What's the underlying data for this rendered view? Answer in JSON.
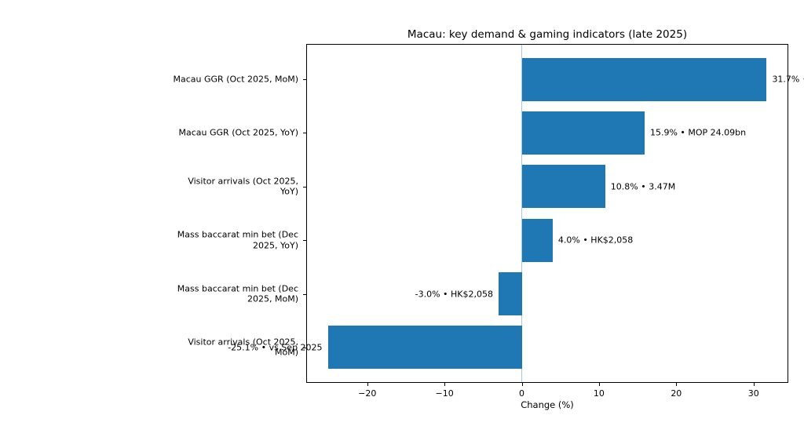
{
  "chart_data": {
    "type": "bar",
    "orientation": "horizontal",
    "title": "Macau: key demand & gaming indicators (late 2025)",
    "xlabel": "Change (%)",
    "ylabel": "",
    "categories": [
      "Macau GGR (Oct 2025, MoM)",
      "Macau GGR (Oct 2025, YoY)",
      "Visitor arrivals (Oct 2025, YoY)",
      "Mass baccarat min bet (Dec 2025, YoY)",
      "Mass baccarat min bet (Dec 2025, MoM)",
      "Visitor arrivals (Oct 2025, MoM)"
    ],
    "category_label_lines": [
      [
        "Macau GGR (Oct 2025, MoM)"
      ],
      [
        "Macau GGR (Oct 2025, YoY)"
      ],
      [
        "Visitor arrivals (Oct 2025,",
        "YoY)"
      ],
      [
        "Mass baccarat min bet (Dec",
        "2025, YoY)"
      ],
      [
        "Mass baccarat min bet (Dec",
        "2025, MoM)"
      ],
      [
        "Visitor arrivals (Oct 2025,",
        "MoM)"
      ]
    ],
    "values": [
      31.7,
      15.9,
      10.8,
      4.0,
      -3.0,
      -25.1
    ],
    "bar_labels": [
      "31.7% •",
      "15.9% • MOP 24.09bn",
      "10.8% • 3.47M",
      "4.0% • HK$2,058",
      "-3.0% • HK$2,058",
      "-25.1% • vs Sep 2025"
    ],
    "xlim": [
      -27.9,
      34.5
    ],
    "xticks": [
      -20,
      -10,
      0,
      10,
      20,
      30
    ],
    "xtick_labels": [
      "−20",
      "−10",
      "0",
      "10",
      "20",
      "30"
    ],
    "bar_color": "#1f77b4",
    "zero_line_color": "#a5c9e1",
    "spine_color": "#000000",
    "text_color": "#000000",
    "background_color": "#ffffff",
    "grid": false,
    "legend_position": "none"
  }
}
